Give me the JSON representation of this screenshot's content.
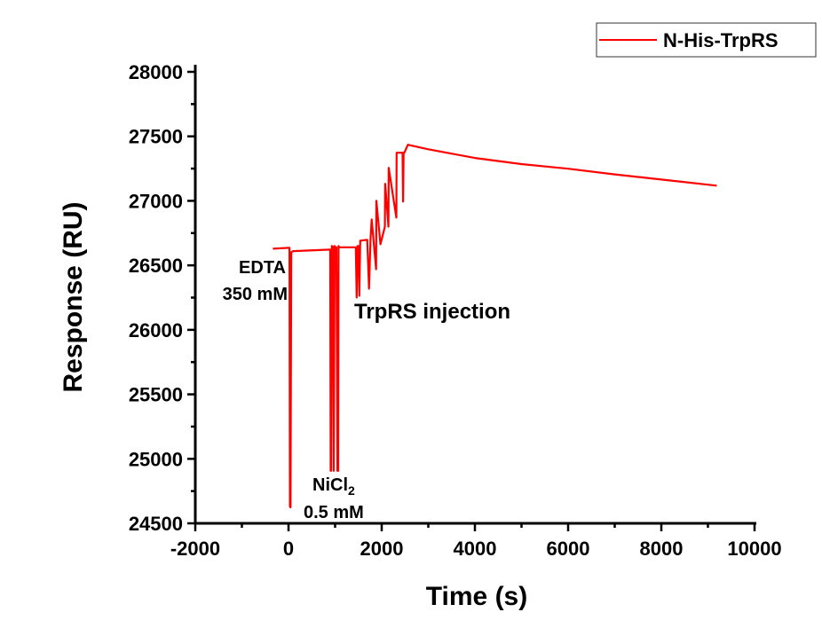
{
  "chart_data": {
    "type": "line",
    "title": "",
    "xlabel": "Time (s)",
    "ylabel": "Response (RU)",
    "xlim": [
      -2000,
      10000
    ],
    "ylim": [
      24500,
      28000
    ],
    "xticks": [
      -2000,
      0,
      2000,
      4000,
      6000,
      8000,
      10000
    ],
    "yticks": [
      24500,
      25000,
      25500,
      26000,
      26500,
      27000,
      27500,
      28000
    ],
    "grid": false,
    "legend_position": "top-right",
    "series": [
      {
        "name": "N-His-TrpRS",
        "color": "#ff0000",
        "x": [
          -335,
          5,
          20,
          30,
          44,
          60,
          100,
          895,
          905,
          914,
          930,
          952,
          970,
          990,
          1010,
          1028,
          1050,
          1066,
          1075,
          1085,
          1122,
          1444,
          1463,
          1480,
          1501,
          1520,
          1539,
          1690,
          1728,
          1760,
          1785,
          1880,
          1885,
          1974,
          2069,
          2075,
          2145,
          2150,
          2315,
          2320,
          2448,
          2460,
          2470,
          2485,
          2561,
          3000,
          4000,
          5000,
          6000,
          7000,
          8000,
          9189
        ],
        "y": [
          26629,
          26636,
          26636,
          24630,
          24624,
          26601,
          26610,
          26622,
          24907,
          24907,
          26650,
          26645,
          24907,
          26650,
          26640,
          26640,
          24907,
          24907,
          26650,
          26640,
          26640,
          26640,
          26250,
          26650,
          26650,
          26264,
          26691,
          26698,
          26319,
          26700,
          26856,
          26470,
          27001,
          26663,
          26801,
          27132,
          26800,
          27256,
          26870,
          27373,
          27373,
          26994,
          27373,
          27373,
          27435,
          27400,
          27332,
          27285,
          27249,
          27205,
          27165,
          27118
        ]
      }
    ],
    "annotations": {
      "edta_line1": "EDTA",
      "edta_line2": "350 mM",
      "nicl_main": "NiCl",
      "nicl_sub": "2",
      "nicl_line2": "0.5 mM",
      "trprs": "TrpRS injection"
    }
  }
}
